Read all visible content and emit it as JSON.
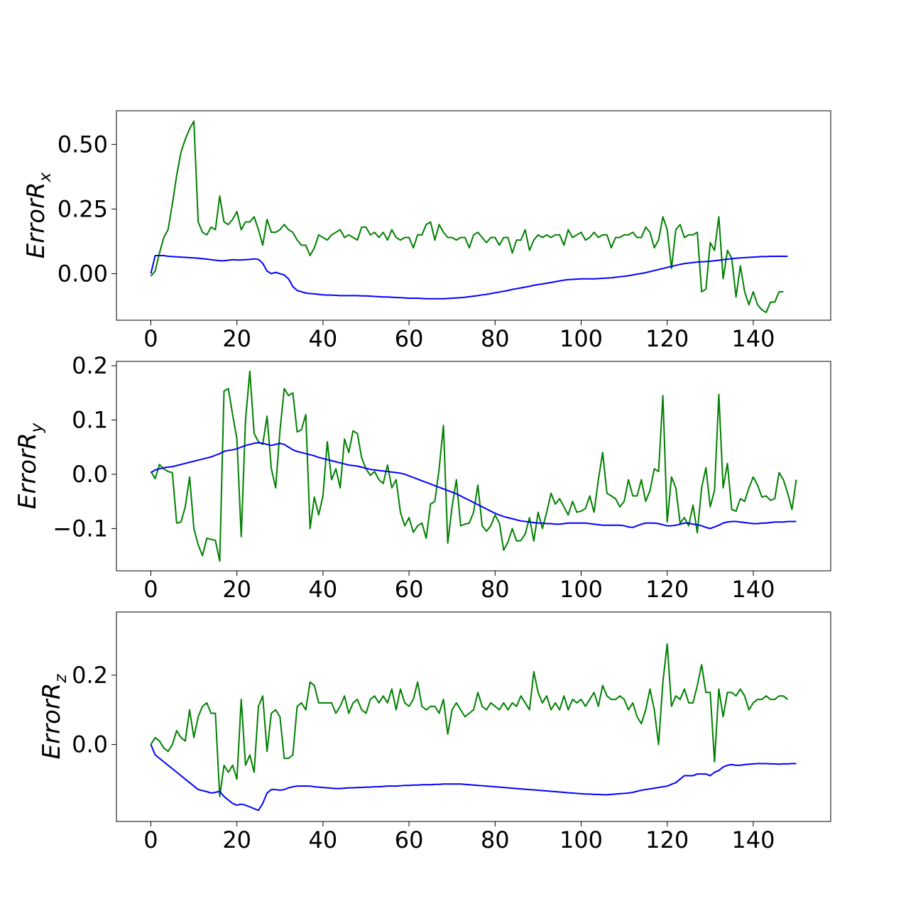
{
  "chart_data": [
    {
      "type": "line",
      "ylabel": "Error",
      "ylabel_italic": "R",
      "ylabel_sub": "x",
      "xlim": [
        -8,
        158
      ],
      "ylim": [
        -0.18,
        0.63
      ],
      "xticks": [
        0,
        20,
        40,
        60,
        80,
        100,
        120,
        140
      ],
      "yticks": [
        0.0,
        0.25,
        0.5
      ],
      "ytick_labels": [
        "0.00",
        "0.25",
        "0.50"
      ],
      "grid": false,
      "series": [
        {
          "color": "#008000",
          "x0": 0,
          "values": [
            -0.01,
            0.01,
            0.08,
            0.14,
            0.17,
            0.27,
            0.38,
            0.47,
            0.52,
            0.56,
            0.59,
            0.2,
            0.16,
            0.15,
            0.18,
            0.17,
            0.3,
            0.2,
            0.19,
            0.21,
            0.24,
            0.17,
            0.2,
            0.2,
            0.22,
            0.17,
            0.11,
            0.21,
            0.16,
            0.16,
            0.17,
            0.19,
            0.17,
            0.16,
            0.13,
            0.11,
            0.11,
            0.07,
            0.1,
            0.15,
            0.14,
            0.13,
            0.15,
            0.16,
            0.17,
            0.14,
            0.15,
            0.14,
            0.13,
            0.18,
            0.18,
            0.15,
            0.16,
            0.14,
            0.16,
            0.13,
            0.17,
            0.14,
            0.13,
            0.14,
            0.14,
            0.1,
            0.15,
            0.15,
            0.19,
            0.2,
            0.13,
            0.19,
            0.16,
            0.14,
            0.14,
            0.13,
            0.14,
            0.14,
            0.1,
            0.15,
            0.16,
            0.14,
            0.12,
            0.14,
            0.14,
            0.11,
            0.14,
            0.14,
            0.08,
            0.13,
            0.13,
            0.17,
            0.09,
            0.13,
            0.15,
            0.14,
            0.15,
            0.14,
            0.15,
            0.15,
            0.11,
            0.17,
            0.14,
            0.15,
            0.16,
            0.13,
            0.14,
            0.16,
            0.14,
            0.15,
            0.15,
            0.1,
            0.14,
            0.14,
            0.15,
            0.15,
            0.16,
            0.14,
            0.14,
            0.18,
            0.16,
            0.1,
            0.13,
            0.22,
            0.17,
            0.02,
            0.17,
            0.19,
            0.14,
            0.15,
            0.15,
            0.16,
            -0.07,
            -0.06,
            0.12,
            0.09,
            0.22,
            -0.02,
            0.09,
            0.06,
            -0.09,
            0.03,
            -0.07,
            -0.12,
            -0.07,
            -0.12,
            -0.14,
            -0.15,
            -0.11,
            -0.11,
            -0.07,
            -0.07
          ]
        },
        {
          "color": "#0000ff",
          "x0": 0,
          "values": [
            0.0,
            0.07,
            0.07,
            0.07,
            0.067,
            0.066,
            0.065,
            0.064,
            0.063,
            0.062,
            0.061,
            0.06,
            0.058,
            0.056,
            0.054,
            0.052,
            0.05,
            0.05,
            0.052,
            0.054,
            0.053,
            0.053,
            0.054,
            0.055,
            0.057,
            0.055,
            0.04,
            0.01,
            0.0,
            0.005,
            0.0,
            -0.005,
            -0.02,
            -0.05,
            -0.065,
            -0.07,
            -0.075,
            -0.077,
            -0.078,
            -0.08,
            -0.082,
            -0.083,
            -0.083,
            -0.084,
            -0.085,
            -0.085,
            -0.085,
            -0.085,
            -0.085,
            -0.086,
            -0.086,
            -0.087,
            -0.088,
            -0.089,
            -0.09,
            -0.09,
            -0.091,
            -0.092,
            -0.093,
            -0.094,
            -0.095,
            -0.095,
            -0.095,
            -0.096,
            -0.097,
            -0.097,
            -0.097,
            -0.097,
            -0.097,
            -0.096,
            -0.095,
            -0.094,
            -0.093,
            -0.091,
            -0.089,
            -0.087,
            -0.085,
            -0.082,
            -0.08,
            -0.077,
            -0.074,
            -0.071,
            -0.068,
            -0.065,
            -0.061,
            -0.058,
            -0.055,
            -0.052,
            -0.049,
            -0.045,
            -0.042,
            -0.04,
            -0.037,
            -0.034,
            -0.031,
            -0.028,
            -0.025,
            -0.023,
            -0.022,
            -0.021,
            -0.02,
            -0.02,
            -0.02,
            -0.02,
            -0.019,
            -0.018,
            -0.017,
            -0.016,
            -0.014,
            -0.012,
            -0.01,
            -0.008,
            -0.005,
            -0.002,
            0.001,
            0.004,
            0.008,
            0.012,
            0.016,
            0.02,
            0.024,
            0.028,
            0.032,
            0.036,
            0.039,
            0.041,
            0.043,
            0.045,
            0.046,
            0.047,
            0.048,
            0.05,
            0.052,
            0.054,
            0.056,
            0.058,
            0.06,
            0.061,
            0.062,
            0.063,
            0.064,
            0.065,
            0.066,
            0.066,
            0.067,
            0.067,
            0.067,
            0.067,
            0.067
          ]
        }
      ]
    },
    {
      "type": "line",
      "ylabel": "Error",
      "ylabel_italic": "R",
      "ylabel_sub": "y",
      "xlim": [
        -8,
        158
      ],
      "ylim": [
        -0.178,
        0.208
      ],
      "xticks": [
        0,
        20,
        40,
        60,
        80,
        100,
        120,
        140
      ],
      "yticks": [
        -0.1,
        0.0,
        0.1,
        0.2
      ],
      "ytick_labels": [
        "−0.1",
        "0.0",
        "0.1",
        "0.2"
      ],
      "grid": false,
      "series": [
        {
          "color": "#008000",
          "x0": 0,
          "values": [
            0.005,
            -0.008,
            0.018,
            0.01,
            0.005,
            0.003,
            -0.09,
            -0.088,
            -0.06,
            -0.005,
            -0.1,
            -0.13,
            -0.15,
            -0.118,
            -0.12,
            -0.122,
            -0.16,
            0.153,
            0.158,
            0.11,
            0.065,
            -0.115,
            0.1,
            0.19,
            0.075,
            0.06,
            0.055,
            0.107,
            0.01,
            -0.025,
            0.08,
            0.158,
            0.145,
            0.15,
            0.078,
            0.082,
            0.11,
            -0.1,
            -0.042,
            -0.075,
            -0.04,
            0.06,
            -0.01,
            0.01,
            -0.025,
            0.065,
            0.04,
            0.08,
            0.075,
            0.03,
            0.01,
            -0.002,
            0.005,
            -0.01,
            -0.017,
            0.017,
            -0.025,
            -0.01,
            -0.07,
            -0.095,
            -0.08,
            -0.107,
            -0.095,
            -0.09,
            -0.118,
            -0.055,
            -0.05,
            0.01,
            0.09,
            -0.127,
            -0.06,
            -0.01,
            -0.095,
            -0.092,
            -0.09,
            -0.07,
            -0.02,
            -0.095,
            -0.105,
            -0.095,
            -0.075,
            -0.09,
            -0.14,
            -0.125,
            -0.1,
            -0.123,
            -0.122,
            -0.11,
            -0.08,
            -0.123,
            -0.07,
            -0.1,
            -0.07,
            -0.035,
            -0.055,
            -0.045,
            -0.06,
            -0.075,
            -0.05,
            -0.07,
            -0.068,
            -0.063,
            -0.04,
            -0.07,
            -0.01,
            0.04,
            -0.035,
            -0.04,
            -0.045,
            -0.06,
            -0.05,
            -0.01,
            -0.04,
            -0.04,
            -0.01,
            -0.05,
            -0.03,
            0.01,
            0.005,
            0.145,
            -0.088,
            -0.005,
            -0.025,
            -0.09,
            -0.08,
            -0.095,
            -0.057,
            -0.108,
            -0.025,
            0.012,
            -0.06,
            -0.03,
            0.147,
            -0.025,
            0.02,
            -0.065,
            -0.068,
            -0.045,
            -0.05,
            -0.025,
            -0.005,
            -0.02,
            -0.042,
            -0.04,
            -0.048,
            -0.045,
            0.003,
            -0.01,
            -0.035,
            -0.065,
            -0.01
          ]
        },
        {
          "color": "#0000ff",
          "x0": 0,
          "values": [
            0.003,
            0.008,
            0.01,
            0.012,
            0.013,
            0.014,
            0.016,
            0.018,
            0.02,
            0.022,
            0.024,
            0.026,
            0.028,
            0.03,
            0.032,
            0.035,
            0.038,
            0.042,
            0.044,
            0.045,
            0.047,
            0.05,
            0.053,
            0.055,
            0.057,
            0.058,
            0.057,
            0.055,
            0.053,
            0.055,
            0.057,
            0.055,
            0.05,
            0.045,
            0.042,
            0.04,
            0.038,
            0.036,
            0.034,
            0.031,
            0.029,
            0.027,
            0.025,
            0.023,
            0.021,
            0.019,
            0.017,
            0.016,
            0.015,
            0.013,
            0.011,
            0.009,
            0.008,
            0.007,
            0.006,
            0.005,
            0.004,
            0.003,
            0.002,
            0.0,
            -0.003,
            -0.006,
            -0.009,
            -0.012,
            -0.015,
            -0.018,
            -0.021,
            -0.024,
            -0.027,
            -0.03,
            -0.033,
            -0.036,
            -0.04,
            -0.044,
            -0.048,
            -0.052,
            -0.056,
            -0.06,
            -0.064,
            -0.068,
            -0.072,
            -0.075,
            -0.078,
            -0.08,
            -0.082,
            -0.084,
            -0.086,
            -0.087,
            -0.088,
            -0.089,
            -0.09,
            -0.09,
            -0.091,
            -0.091,
            -0.092,
            -0.092,
            -0.091,
            -0.09,
            -0.09,
            -0.09,
            -0.09,
            -0.09,
            -0.091,
            -0.092,
            -0.093,
            -0.094,
            -0.094,
            -0.094,
            -0.094,
            -0.094,
            -0.095,
            -0.097,
            -0.098,
            -0.095,
            -0.092,
            -0.09,
            -0.09,
            -0.09,
            -0.091,
            -0.093,
            -0.095,
            -0.095,
            -0.094,
            -0.092,
            -0.09,
            -0.09,
            -0.092,
            -0.093,
            -0.095,
            -0.098,
            -0.1,
            -0.097,
            -0.094,
            -0.09,
            -0.088,
            -0.087,
            -0.087,
            -0.088,
            -0.089,
            -0.09,
            -0.091,
            -0.091,
            -0.09,
            -0.09,
            -0.089,
            -0.088,
            -0.088,
            -0.088,
            -0.087,
            -0.087,
            -0.087
          ]
        }
      ]
    },
    {
      "type": "line",
      "ylabel": "Error",
      "ylabel_italic": "R",
      "ylabel_sub": "z",
      "xlim": [
        -8,
        158
      ],
      "ylim": [
        -0.222,
        0.382
      ],
      "xticks": [
        0,
        20,
        40,
        60,
        80,
        100,
        120,
        140
      ],
      "yticks": [
        0.0,
        0.2
      ],
      "ytick_labels": [
        "0.0",
        "0.2"
      ],
      "grid": false,
      "series": [
        {
          "color": "#008000",
          "x0": 0,
          "values": [
            0.0,
            0.02,
            0.01,
            -0.01,
            -0.02,
            0.0,
            0.04,
            0.02,
            0.01,
            0.1,
            0.02,
            0.08,
            0.11,
            0.12,
            0.09,
            0.09,
            -0.15,
            -0.06,
            -0.08,
            -0.06,
            -0.1,
            0.13,
            -0.06,
            -0.03,
            -0.08,
            0.11,
            0.14,
            -0.02,
            0.09,
            0.1,
            0.08,
            -0.04,
            -0.04,
            -0.03,
            0.11,
            0.12,
            0.1,
            0.18,
            0.17,
            0.12,
            0.12,
            0.12,
            0.12,
            0.09,
            0.11,
            0.14,
            0.09,
            0.12,
            0.13,
            0.1,
            0.09,
            0.13,
            0.14,
            0.12,
            0.14,
            0.12,
            0.16,
            0.1,
            0.16,
            0.12,
            0.11,
            0.13,
            0.18,
            0.11,
            0.1,
            0.11,
            0.11,
            0.09,
            0.13,
            0.03,
            0.1,
            0.12,
            0.1,
            0.08,
            0.09,
            0.1,
            0.15,
            0.11,
            0.1,
            0.12,
            0.11,
            0.1,
            0.12,
            0.1,
            0.12,
            0.11,
            0.14,
            0.12,
            0.1,
            0.21,
            0.15,
            0.12,
            0.14,
            0.1,
            0.12,
            0.1,
            0.14,
            0.1,
            0.13,
            0.12,
            0.13,
            0.11,
            0.13,
            0.15,
            0.11,
            0.17,
            0.14,
            0.13,
            0.13,
            0.14,
            0.13,
            0.1,
            0.12,
            0.08,
            0.06,
            0.1,
            0.16,
            0.1,
            0.0,
            0.18,
            0.29,
            0.11,
            0.14,
            0.13,
            0.16,
            0.12,
            0.12,
            0.17,
            0.23,
            0.15,
            0.15,
            -0.05,
            0.16,
            0.08,
            0.15,
            0.15,
            0.14,
            0.16,
            0.14,
            0.1,
            0.12,
            0.13,
            0.13,
            0.14,
            0.13,
            0.13,
            0.14,
            0.14,
            0.13
          ]
        },
        {
          "color": "#0000ff",
          "x0": 0,
          "values": [
            0.0,
            -0.03,
            -0.04,
            -0.05,
            -0.06,
            -0.07,
            -0.08,
            -0.09,
            -0.1,
            -0.11,
            -0.12,
            -0.13,
            -0.133,
            -0.136,
            -0.14,
            -0.138,
            -0.135,
            -0.15,
            -0.16,
            -0.17,
            -0.175,
            -0.172,
            -0.175,
            -0.18,
            -0.185,
            -0.19,
            -0.17,
            -0.14,
            -0.13,
            -0.13,
            -0.132,
            -0.13,
            -0.125,
            -0.122,
            -0.12,
            -0.12,
            -0.12,
            -0.12,
            -0.122,
            -0.123,
            -0.124,
            -0.125,
            -0.126,
            -0.127,
            -0.127,
            -0.126,
            -0.125,
            -0.125,
            -0.124,
            -0.124,
            -0.123,
            -0.123,
            -0.122,
            -0.122,
            -0.121,
            -0.12,
            -0.12,
            -0.12,
            -0.119,
            -0.118,
            -0.118,
            -0.117,
            -0.117,
            -0.116,
            -0.116,
            -0.116,
            -0.115,
            -0.115,
            -0.114,
            -0.114,
            -0.114,
            -0.114,
            -0.114,
            -0.115,
            -0.116,
            -0.117,
            -0.118,
            -0.119,
            -0.12,
            -0.121,
            -0.122,
            -0.123,
            -0.124,
            -0.125,
            -0.126,
            -0.127,
            -0.128,
            -0.129,
            -0.13,
            -0.131,
            -0.132,
            -0.133,
            -0.134,
            -0.135,
            -0.136,
            -0.137,
            -0.138,
            -0.139,
            -0.14,
            -0.141,
            -0.142,
            -0.143,
            -0.143,
            -0.144,
            -0.144,
            -0.145,
            -0.145,
            -0.144,
            -0.143,
            -0.142,
            -0.141,
            -0.14,
            -0.138,
            -0.135,
            -0.132,
            -0.13,
            -0.128,
            -0.126,
            -0.124,
            -0.122,
            -0.12,
            -0.115,
            -0.11,
            -0.1,
            -0.09,
            -0.09,
            -0.09,
            -0.085,
            -0.085,
            -0.085,
            -0.09,
            -0.08,
            -0.075,
            -0.065,
            -0.06,
            -0.058,
            -0.06,
            -0.06,
            -0.058,
            -0.057,
            -0.056,
            -0.055,
            -0.055,
            -0.055,
            -0.056,
            -0.056,
            -0.057,
            -0.056,
            -0.056,
            -0.055,
            -0.055
          ]
        }
      ]
    }
  ]
}
